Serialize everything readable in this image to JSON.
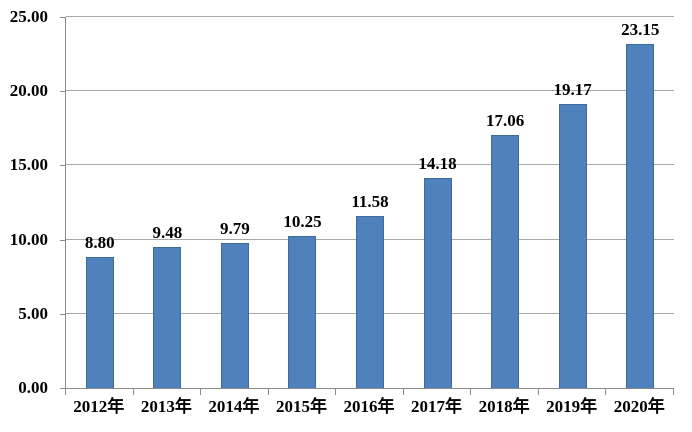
{
  "chart_data": {
    "type": "bar",
    "title": "",
    "xlabel": "",
    "ylabel": "",
    "categories": [
      "2012年",
      "2013年",
      "2014年",
      "2015年",
      "2016年",
      "2017年",
      "2018年",
      "2019年",
      "2020年"
    ],
    "values": [
      8.8,
      9.48,
      9.79,
      10.25,
      11.58,
      14.18,
      17.06,
      19.17,
      23.15
    ],
    "data_labels": [
      "8.80",
      "9.48",
      "9.79",
      "10.25",
      "11.58",
      "14.18",
      "17.06",
      "19.17",
      "23.15"
    ],
    "ylim": [
      0,
      25
    ],
    "ytick_interval": 5,
    "ytick_labels": [
      "0.00",
      "5.00",
      "10.00",
      "15.00",
      "20.00",
      "25.00"
    ],
    "grid": true,
    "legend": "none",
    "colors": {
      "bar": "#4f81bd",
      "bar_border": "#41699c",
      "gridline": "#a8a8a8",
      "axis": "#8a8a8a",
      "text": "#000000",
      "background": "#ffffff"
    }
  }
}
